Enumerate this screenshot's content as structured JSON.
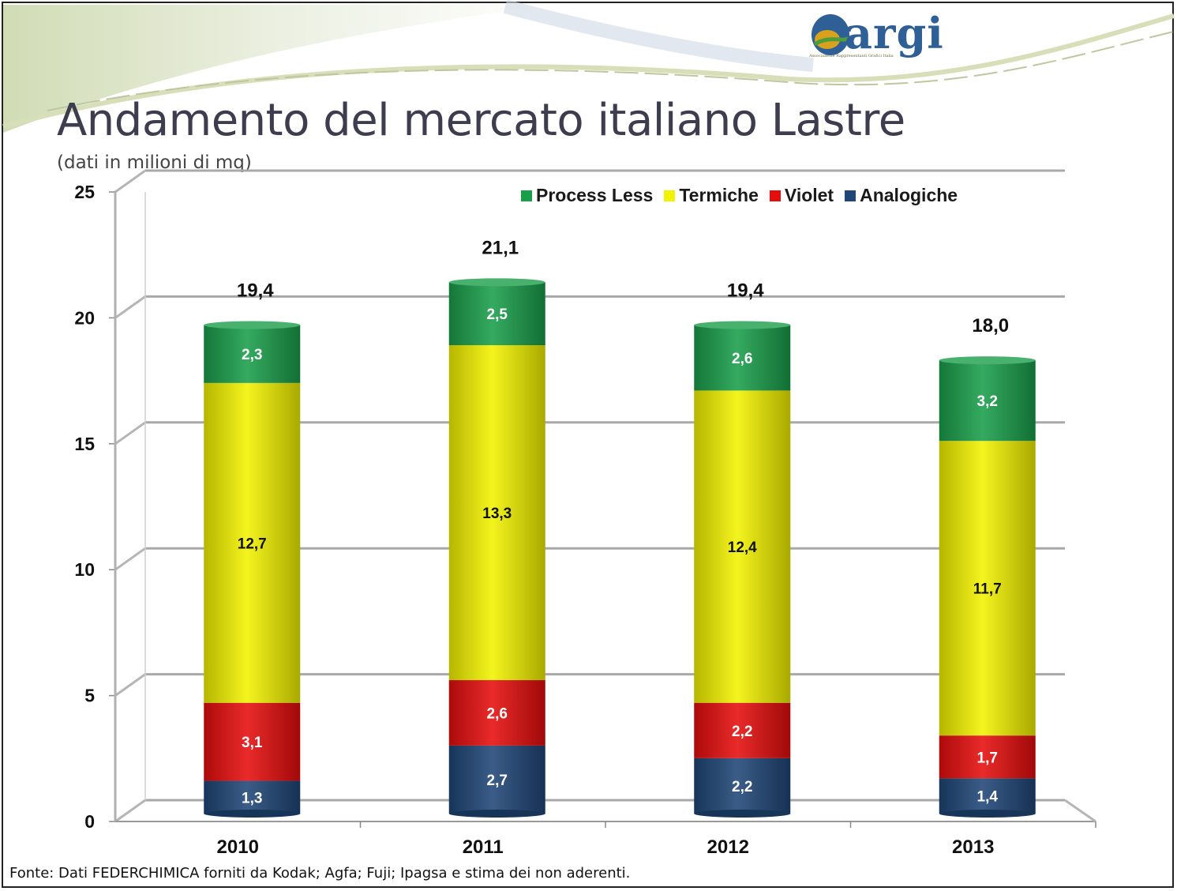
{
  "title": "Andamento del mercato italiano Lastre",
  "subtitle": "(dati in milioni di mq)",
  "footer": "Fonte:  Dati FEDERCHIMICA forniti da Kodak; Agfa; Fuji; Ipagsa e stima dei non aderenti.",
  "logo": {
    "text": "argi",
    "tagline": "Associazione Rappresentanti Grafici Italia",
    "icon": "argi-logo-icon"
  },
  "colors": {
    "Process Less": "#1a9e4a",
    "Termiche": "#f2f200",
    "Violet": "#e60d0d",
    "Analogiche": "#1f4677"
  },
  "chart_data": {
    "type": "bar",
    "stacked": true,
    "categories": [
      "2010",
      "2011",
      "2012",
      "2013"
    ],
    "series": [
      {
        "name": "Analogiche",
        "values": [
          1.3,
          2.7,
          2.2,
          1.4
        ],
        "labels": [
          "1,3",
          "2,7",
          "2,2",
          "1,4"
        ]
      },
      {
        "name": "Violet",
        "values": [
          3.1,
          2.6,
          2.2,
          1.7
        ],
        "labels": [
          "3,1",
          "2,6",
          "2,2",
          "1,7"
        ]
      },
      {
        "name": "Termiche",
        "values": [
          12.7,
          13.3,
          12.4,
          11.7
        ],
        "labels": [
          "12,7",
          "13,3",
          "12,4",
          "11,7"
        ]
      },
      {
        "name": "Process Less",
        "values": [
          2.3,
          2.5,
          2.6,
          3.2
        ],
        "labels": [
          "2,3",
          "2,5",
          "2,6",
          "3,2"
        ]
      }
    ],
    "legend_order": [
      "Process Less",
      "Termiche",
      "Violet",
      "Analogiche"
    ],
    "totals": [
      19.4,
      21.1,
      19.4,
      18.0
    ],
    "total_labels": [
      "19,4",
      "21,1",
      "19,4",
      "18,0"
    ],
    "ylim": [
      0,
      25
    ],
    "yticks": [
      "0",
      "5",
      "10",
      "15",
      "20",
      "25"
    ],
    "grid": true,
    "legend_position": "top-right",
    "xlabel": "",
    "ylabel": ""
  }
}
